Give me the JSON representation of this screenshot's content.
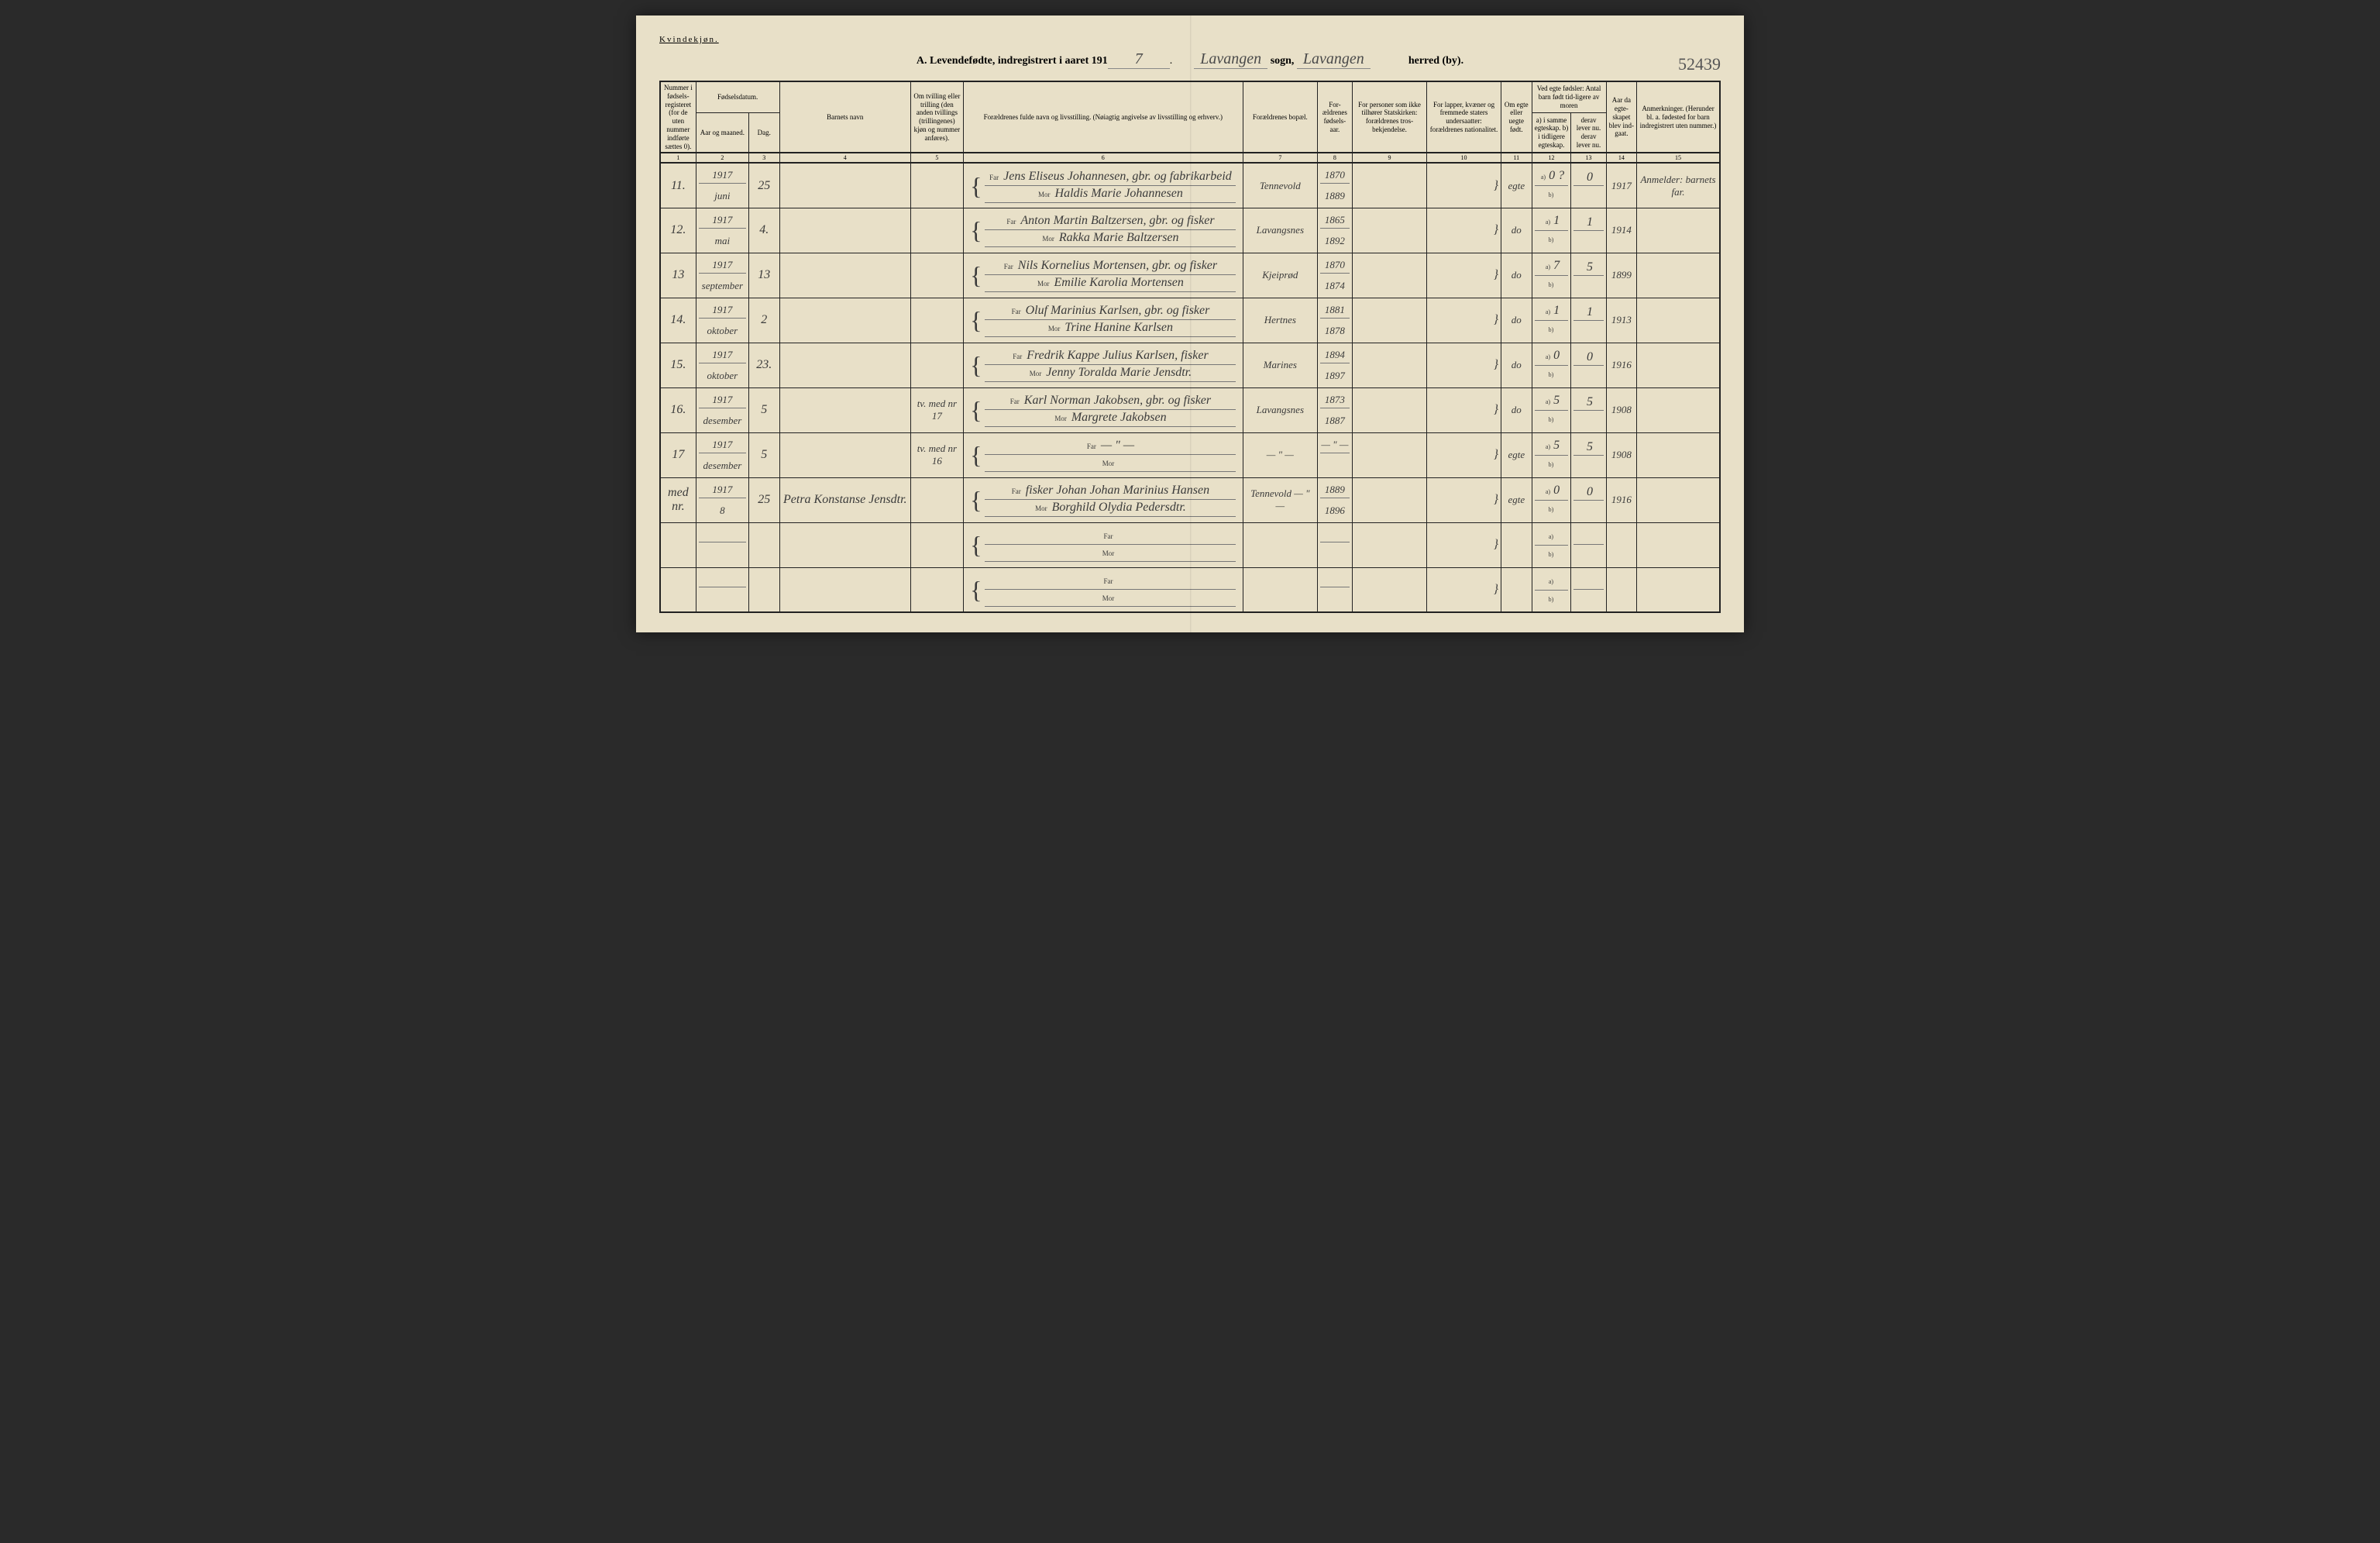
{
  "header": {
    "gender_label": "Kvindekjøn.",
    "title_prefix": "A. Levendefødte, indregistrert i aaret 191",
    "year_suffix": "7",
    "sogn_label": "sogn,",
    "sogn_value": "Lavangen",
    "herred_label": "herred (by).",
    "herred_value": "Lavangen",
    "page_number": "52439"
  },
  "columns": {
    "c1": "Nummer i fødsels-registeret (for de uten nummer indførte sættes 0).",
    "c2_group": "Fødselsdatum.",
    "c2": "Aar og maaned.",
    "c3": "Dag.",
    "c4": "Barnets navn",
    "c5": "Om tvilling eller trilling (den anden tvillings (trillingenes) kjøn og nummer anføres).",
    "c6": "Forældrenes fulde navn og livsstilling. (Nøiagtig angivelse av livsstilling og erhverv.)",
    "c7": "Forældrenes bopæl.",
    "c8": "For-ældrenes fødsels-aar.",
    "c9": "For personer som ikke tilhører Statskirken: forældrenes tros-bekjendelse.",
    "c10": "For lapper, kvæner og fremmede staters undersaatter: forældrenes nationalitet.",
    "c11": "Om egte eller uegte født.",
    "c12_group": "Ved egte fødsler: Antal barn født tid-ligere av moren",
    "c12": "a) i samme egteskap. b) i tidligere egteskap.",
    "c13": "derav lever nu. derav lever nu.",
    "c14": "Aar da egte-skapet blev ind-gaat.",
    "c15": "Anmerkninger. (Herunder bl. a. fødested for barn indregistrert uten nummer.)"
  },
  "colnums": [
    "1",
    "2",
    "3",
    "4",
    "5",
    "6",
    "7",
    "8",
    "9",
    "10",
    "11",
    "12",
    "13",
    "14",
    "15"
  ],
  "far_label": "Far",
  "mor_label": "Mor",
  "rows": [
    {
      "num": "11.",
      "year_month": "1917 juni",
      "day": "25",
      "name": "",
      "twin": "",
      "far": "Jens Eliseus Johannesen, gbr. og fabrikarbeid",
      "mor": "Haldis Marie Johannesen",
      "bopael": "Tennevold",
      "faar": "1870",
      "maar": "1889",
      "c9": "",
      "c10": "",
      "egte": "egte",
      "c12a": "0 ?",
      "c12b": "",
      "c13a": "0",
      "c13b": "",
      "c14": "1917",
      "anm": "Anmelder: barnets far."
    },
    {
      "num": "12.",
      "year_month": "1917 mai",
      "day": "4.",
      "name": "",
      "twin": "",
      "far": "Anton Martin Baltzersen, gbr. og fisker",
      "mor": "Rakka Marie Baltzersen",
      "bopael": "Lavangsnes",
      "faar": "1865",
      "maar": "1892",
      "c9": "",
      "c10": "",
      "egte": "do",
      "c12a": "1",
      "c12b": "",
      "c13a": "1",
      "c13b": "",
      "c14": "1914",
      "anm": ""
    },
    {
      "num": "13",
      "year_month": "1917 september",
      "day": "13",
      "name": "",
      "twin": "",
      "far": "Nils Kornelius Mortensen, gbr. og fisker",
      "mor": "Emilie Karolia Mortensen",
      "bopael": "Kjeiprød",
      "faar": "1870",
      "maar": "1874",
      "c9": "",
      "c10": "",
      "egte": "do",
      "c12a": "7",
      "c12b": "",
      "c13a": "5",
      "c13b": "",
      "c14": "1899",
      "anm": ""
    },
    {
      "num": "14.",
      "year_month": "1917 oktober",
      "day": "2",
      "name": "",
      "twin": "",
      "far": "Oluf Marinius Karlsen, gbr. og fisker",
      "mor": "Trine Hanine Karlsen",
      "bopael": "Hertnes",
      "faar": "1881",
      "maar": "1878",
      "c9": "",
      "c10": "",
      "egte": "do",
      "c12a": "1",
      "c12b": "",
      "c13a": "1",
      "c13b": "",
      "c14": "1913",
      "anm": ""
    },
    {
      "num": "15.",
      "year_month": "1917 oktober",
      "day": "23.",
      "name": "",
      "twin": "",
      "far": "Fredrik Kappe Julius Karlsen, fisker",
      "mor": "Jenny Toralda Marie Jensdtr.",
      "bopael": "Marines",
      "faar": "1894",
      "maar": "1897",
      "c9": "",
      "c10": "",
      "egte": "do",
      "c12a": "0",
      "c12b": "",
      "c13a": "0",
      "c13b": "",
      "c14": "1916",
      "anm": ""
    },
    {
      "num": "16.",
      "year_month": "1917 desember",
      "day": "5",
      "name": "",
      "twin": "tv. med nr 17",
      "far": "Karl Norman Jakobsen, gbr. og fisker",
      "mor": "Margrete Jakobsen",
      "bopael": "Lavangsnes",
      "faar": "1873",
      "maar": "1887",
      "c9": "",
      "c10": "",
      "egte": "do",
      "c12a": "5",
      "c12b": "",
      "c13a": "5",
      "c13b": "",
      "c14": "1908",
      "anm": ""
    },
    {
      "num": "17",
      "year_month": "1917 desember",
      "day": "5",
      "name": "",
      "twin": "tv. med nr 16",
      "far": "— ʺ —",
      "mor": "",
      "bopael": "— ʺ —",
      "faar": "— ʺ —",
      "maar": "",
      "c9": "",
      "c10": "",
      "egte": "egte",
      "c12a": "5",
      "c12b": "",
      "c13a": "5",
      "c13b": "",
      "c14": "1908",
      "anm": ""
    },
    {
      "num": "med nr.",
      "year_month": "1917 8",
      "day": "25",
      "name": "Petra Konstanse Jensdtr.",
      "twin": "",
      "far": "fisker Johan Johan Marinius Hansen",
      "mor": "Borghild Olydia Pedersdtr.",
      "bopael": "Tennevold — ʺ —",
      "faar": "1889",
      "maar": "1896",
      "c9": "",
      "c10": "",
      "egte": "egte",
      "c12a": "0",
      "c12b": "",
      "c13a": "0",
      "c13b": "",
      "c14": "1916",
      "anm": ""
    },
    {
      "num": "",
      "year_month": "",
      "day": "",
      "name": "",
      "twin": "",
      "far": "",
      "mor": "",
      "bopael": "",
      "faar": "",
      "maar": "",
      "c9": "",
      "c10": "",
      "egte": "",
      "c12a": "",
      "c12b": "",
      "c13a": "",
      "c13b": "",
      "c14": "",
      "anm": ""
    },
    {
      "num": "",
      "year_month": "",
      "day": "",
      "name": "",
      "twin": "",
      "far": "",
      "mor": "",
      "bopael": "",
      "faar": "",
      "maar": "",
      "c9": "",
      "c10": "",
      "egte": "",
      "c12a": "",
      "c12b": "",
      "c13a": "",
      "c13b": "",
      "c14": "",
      "anm": ""
    }
  ]
}
